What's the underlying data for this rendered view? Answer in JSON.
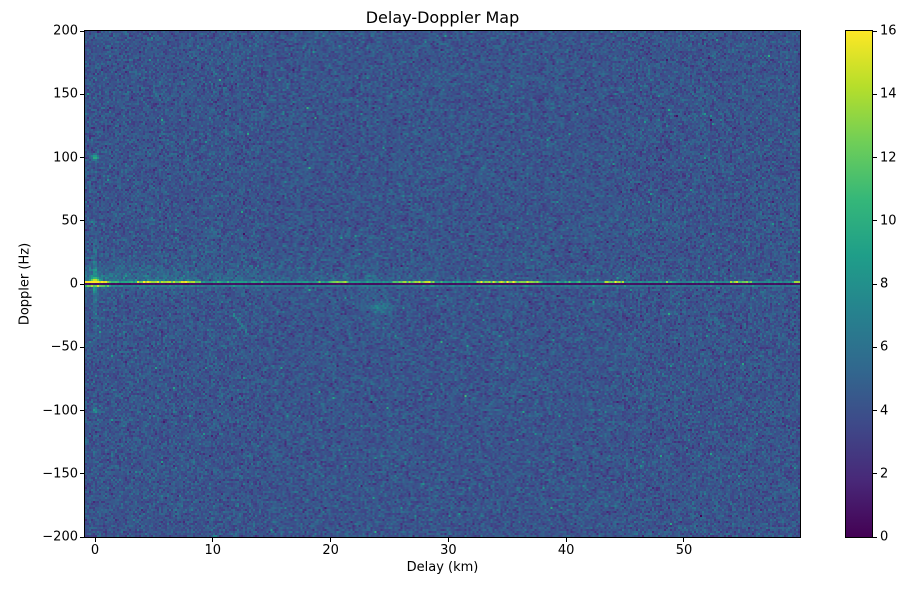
{
  "chart_data": {
    "type": "heatmap",
    "title": "Delay-Doppler Map",
    "xlabel": "Delay (km)",
    "ylabel": "Doppler (Hz)",
    "xlim": [
      -0.85,
      59.85
    ],
    "ylim": [
      -200,
      200
    ],
    "xtick_values": [
      0,
      10,
      20,
      30,
      40,
      50
    ],
    "xtick_labels": [
      "0",
      "10",
      "20",
      "30",
      "40",
      "50"
    ],
    "ytick_values": [
      200,
      150,
      100,
      50,
      0,
      -50,
      -100,
      -150,
      -200
    ],
    "ytick_labels": [
      "200",
      "150",
      "100",
      "50",
      "0",
      "−50",
      "−100",
      "−150",
      "−200"
    ],
    "colorbar": {
      "vmin": 0,
      "vmax": 16,
      "tick_values": [
        0,
        2,
        4,
        6,
        8,
        10,
        12,
        14,
        16
      ],
      "tick_labels": [
        "0",
        "2",
        "4",
        "6",
        "8",
        "10",
        "12",
        "14",
        "16"
      ]
    },
    "colormap": "viridis",
    "colormap_stops": [
      [
        0.0,
        "#440154"
      ],
      [
        0.111,
        "#482878"
      ],
      [
        0.222,
        "#3e4989"
      ],
      [
        0.333,
        "#31688e"
      ],
      [
        0.444,
        "#26828e"
      ],
      [
        0.556,
        "#1f9e89"
      ],
      [
        0.667,
        "#35b779"
      ],
      [
        0.778,
        "#6ece58"
      ],
      [
        0.889,
        "#b5de2b"
      ],
      [
        1.0,
        "#fde725"
      ]
    ],
    "background_noise": {
      "mean": 4.2,
      "std": 0.85
    },
    "features": {
      "zero_doppler_dark_line": {
        "doppler_hz": 0,
        "value": 0.7
      },
      "bright_line_above_zero": {
        "doppler_hz": 1.6,
        "base_value": 7.4,
        "peak_value_at_zero_delay": 16,
        "decay_km": 14
      },
      "dim_line_below_zero": {
        "doppler_hz": -1.6,
        "base_value": 5.9
      },
      "origin_peak": {
        "delay_km": 0,
        "doppler_hz": 1.8,
        "value": 16
      },
      "origin_vertical_streak": {
        "delay_km": 0,
        "doppler_extent_hz": 60,
        "value": 8
      },
      "glow_wedge_above_line": {
        "doppler_extent_hz": 30,
        "delay_decay_km": 15,
        "value": 7
      },
      "spot_upper": {
        "delay_km": 0,
        "doppler_hz": 100,
        "value": 10
      },
      "spot_lower": {
        "delay_km": 0,
        "doppler_hz": -100,
        "value": 8.5
      },
      "diagonal_streak": {
        "from": [
          11.7,
          -24
        ],
        "to": [
          12.8,
          -37
        ],
        "value": 7.5
      },
      "faint_blob": {
        "delay_km": 24.3,
        "doppler_hz": -19,
        "value": 7
      },
      "vertical_smear": {
        "delay_km": 23.4,
        "value": 6.5
      }
    },
    "colors": {
      "figure_bg": "#ffffff",
      "spine": "#000000",
      "text": "#000000"
    },
    "legend_position": "colorbar-right",
    "grid": false
  }
}
